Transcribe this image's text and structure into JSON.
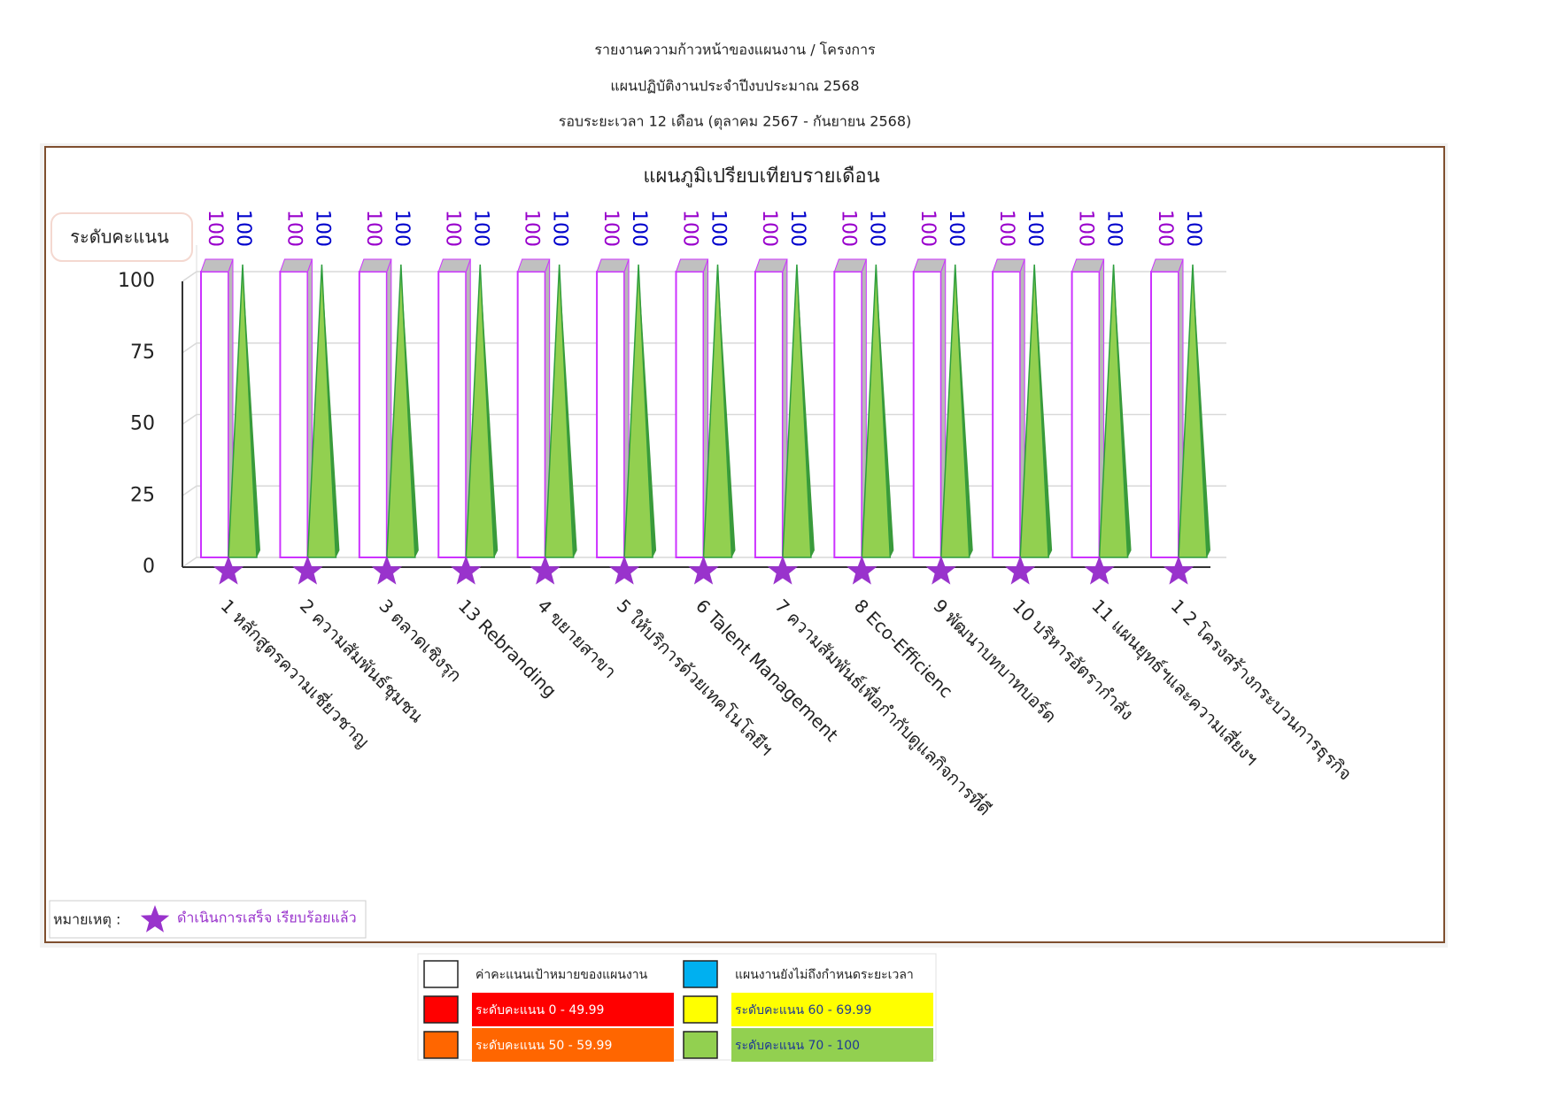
{
  "header": {
    "lines": [
      "รายงานความก้าวหน้าของแผนงาน / โครงการ",
      "แผนปฏิบัติงานประจำปีงบประมาณ 2568",
      "รอบระยะเวลา 12 เดือน  (ตุลาคม 2567 - กันยายน 2568)"
    ]
  },
  "chart_data": {
    "type": "bar",
    "title": "แผนภูมิเปรียบเทียบรายเดือน",
    "y_label": "ระดับคะแนน",
    "categories": [
      "1 หลักสูตรความเชี่ยวชาญ",
      "2 ความสัมพันธ์ชุมชน",
      "3 ตลาดเชิงรุก",
      "13 Rebranding",
      "4 ขยายสาขา",
      "5 ให้บริการด้วยเทคโนโลยีฯ",
      "6 Talent Management",
      "7 ความสัมพันธ์เพื่อกำกับดูแลกิจการที่ดี",
      "8 Eco-Efficienc",
      "9 พัฒนาบทบาทบอร์ด",
      "10 บริหารอัตรากำลัง",
      "11 แผนยุทธ์ฯและความเสี่ยงฯ",
      "1 2 โครงสร้างกระบวนการธุรกิจ"
    ],
    "series": [
      {
        "name": "ค่าคะแนนเป้าหมายของแผนงาน",
        "color": "#ffffff",
        "label_color": "#9900cc",
        "values": [
          100,
          100,
          100,
          100,
          100,
          100,
          100,
          100,
          100,
          100,
          100,
          100,
          100
        ]
      },
      {
        "color": "#92d050",
        "label_color": "#0000cc",
        "values": [
          100,
          100,
          100,
          100,
          100,
          100,
          100,
          100,
          100,
          100,
          100,
          100,
          100
        ]
      }
    ],
    "completed": [
      true,
      true,
      true,
      true,
      true,
      true,
      true,
      true,
      true,
      true,
      true,
      true,
      true
    ],
    "completed_color": "#9933cc",
    "ylim": [
      0,
      100
    ],
    "yticks": [
      0,
      25,
      50,
      75,
      100
    ],
    "grid": true,
    "note": {
      "prefix": "หมายเหตุ :",
      "text": "ดำเนินการเสร็จ เรียบร้อยแล้ว"
    },
    "color_key": [
      {
        "label": "ค่าคะแนนเป้าหมายของแผนงาน",
        "color": "#ffffff"
      },
      {
        "label": "แผนงานยังไม่ถึงกำหนดระยะเวลา",
        "color": "#00b0f0"
      },
      {
        "label": "ระดับคะแนน 0 - 49.99",
        "color": "#ff0000"
      },
      {
        "label": "ระดับคะแนน 60 - 69.99",
        "color": "#ffff00"
      },
      {
        "label": "ระดับคะแนน 50 - 59.99",
        "color": "#ff6600"
      },
      {
        "label": "ระดับคะแนน 70 - 100",
        "color": "#92d050"
      }
    ]
  }
}
